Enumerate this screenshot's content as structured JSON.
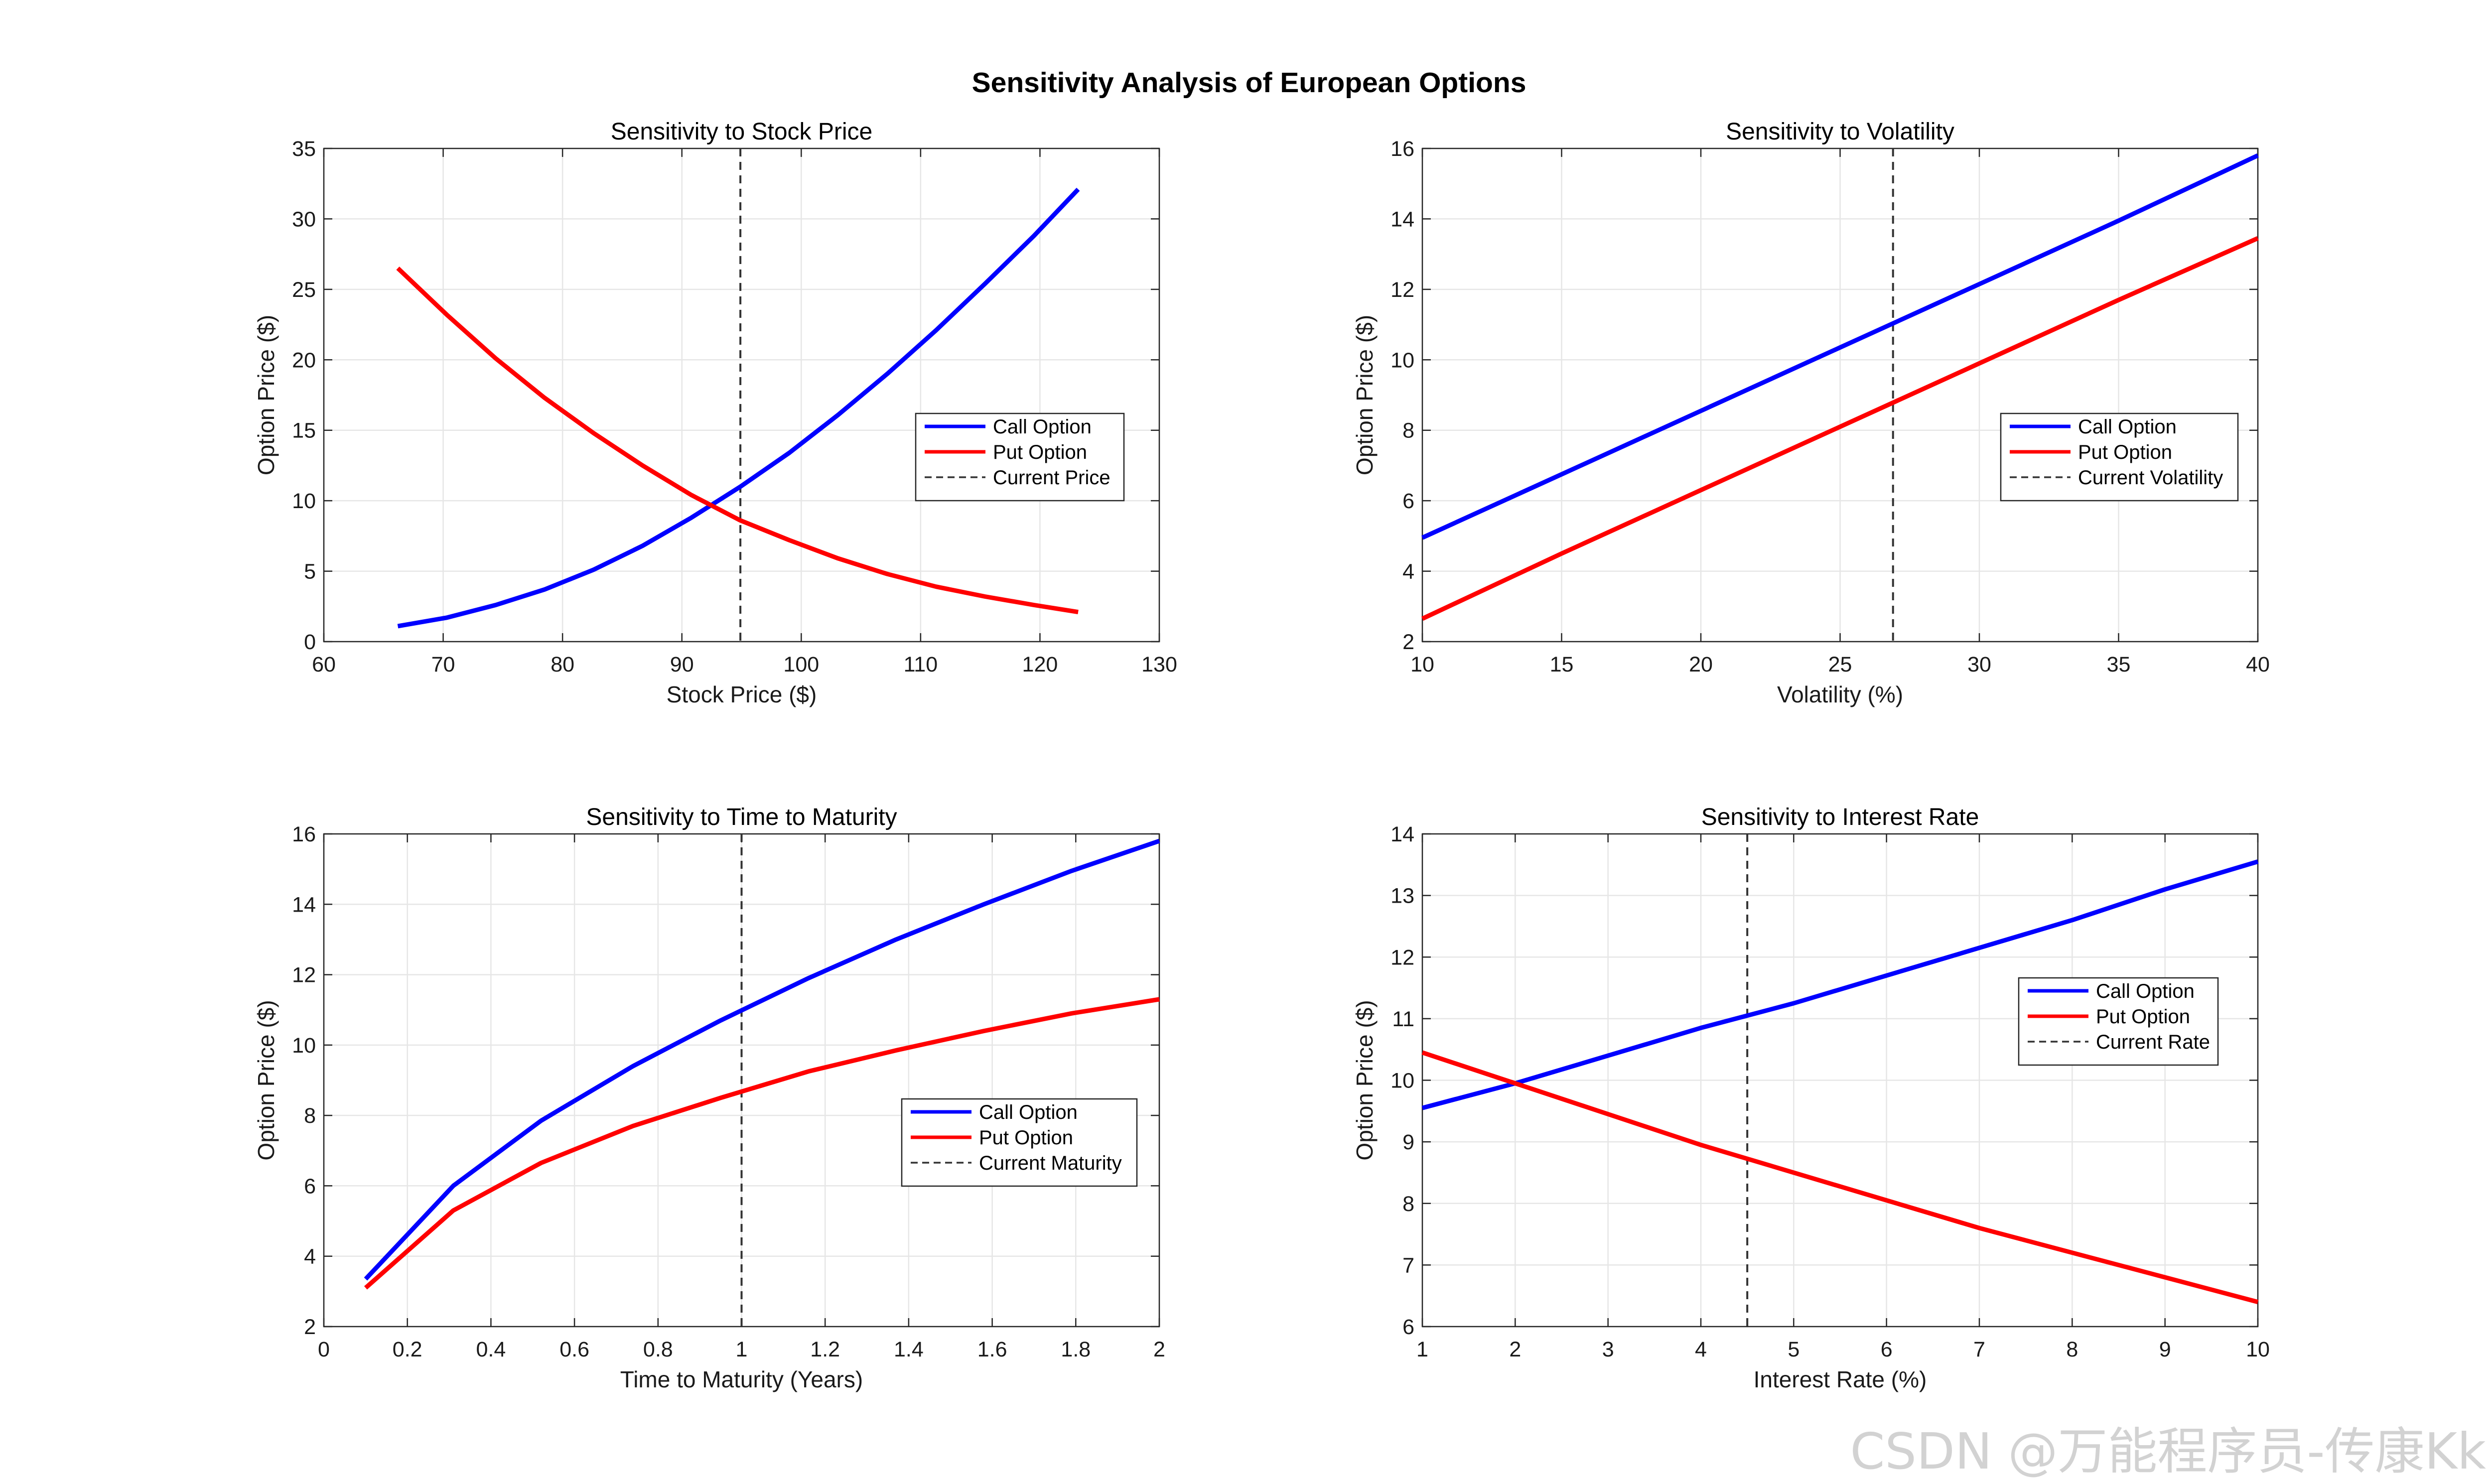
{
  "figure_title": "Sensitivity Analysis of European Options",
  "watermark": "CSDN @万能程序员-传康Kk",
  "colors": {
    "call": "#0000ff",
    "put": "#ff0000",
    "current": "#333333",
    "grid": "#e6e6e6",
    "axis": "#262626"
  },
  "chart_data": [
    {
      "type": "line",
      "title": "Sensitivity to Stock Price",
      "xlabel": "Stock Price ($)",
      "ylabel": "Option Price ($)",
      "xlim": [
        60,
        130
      ],
      "ylim": [
        0,
        35
      ],
      "xticks": [
        60,
        70,
        80,
        90,
        100,
        110,
        120,
        130
      ],
      "yticks": [
        0,
        5,
        10,
        15,
        20,
        25,
        30,
        35
      ],
      "xtick_labels": [
        "60",
        "70",
        "80",
        "90",
        "100",
        "110",
        "120",
        "130"
      ],
      "ytick_labels": [
        "0",
        "5",
        "10",
        "15",
        "20",
        "25",
        "30",
        "35"
      ],
      "legend_position": "right-middle",
      "series": [
        {
          "name": "Call Option",
          "color": "#0000ff",
          "x": [
            66.2,
            70.3,
            74.4,
            78.5,
            82.6,
            86.7,
            90.8,
            94.9,
            99.0,
            103.1,
            107.2,
            111.3,
            115.4,
            119.5,
            123.2
          ],
          "y": [
            1.1,
            1.7,
            2.6,
            3.7,
            5.1,
            6.8,
            8.8,
            11.0,
            13.4,
            16.1,
            19.0,
            22.1,
            25.4,
            28.8,
            32.1
          ]
        },
        {
          "name": "Put Option",
          "color": "#ff0000",
          "x": [
            66.2,
            70.3,
            74.4,
            78.5,
            82.6,
            86.7,
            90.8,
            94.9,
            99.0,
            103.1,
            107.2,
            111.3,
            115.4,
            119.5,
            123.2
          ],
          "y": [
            26.5,
            23.2,
            20.1,
            17.3,
            14.8,
            12.5,
            10.4,
            8.6,
            7.2,
            5.9,
            4.8,
            3.9,
            3.2,
            2.6,
            2.1
          ]
        }
      ],
      "reference_line": {
        "name": "Current Price",
        "x": 94.9
      }
    },
    {
      "type": "line",
      "title": "Sensitivity to Volatility",
      "xlabel": "Volatility (%)",
      "ylabel": "Option Price ($)",
      "xlim": [
        10,
        40
      ],
      "ylim": [
        2,
        16
      ],
      "xticks": [
        10,
        15,
        20,
        25,
        30,
        35,
        40
      ],
      "yticks": [
        2,
        4,
        6,
        8,
        10,
        12,
        14,
        16
      ],
      "xtick_labels": [
        "10",
        "15",
        "20",
        "25",
        "30",
        "35",
        "40"
      ],
      "ytick_labels": [
        "2",
        "4",
        "6",
        "8",
        "10",
        "12",
        "14",
        "16"
      ],
      "legend_position": "right-middle",
      "series": [
        {
          "name": "Call Option",
          "color": "#0000ff",
          "x": [
            10,
            15,
            20,
            25,
            30,
            35,
            40
          ],
          "y": [
            4.95,
            6.75,
            8.55,
            10.35,
            12.15,
            13.95,
            15.8
          ]
        },
        {
          "name": "Put Option",
          "color": "#ff0000",
          "x": [
            10,
            15,
            20,
            25,
            30,
            35,
            40
          ],
          "y": [
            2.65,
            4.5,
            6.3,
            8.1,
            9.9,
            11.7,
            13.45
          ]
        }
      ],
      "reference_line": {
        "name": "Current Volatility",
        "x": 26.9
      }
    },
    {
      "type": "line",
      "title": "Sensitivity to Time to Maturity",
      "xlabel": "Time to Maturity (Years)",
      "ylabel": "Option Price ($)",
      "xlim": [
        0,
        2
      ],
      "ylim": [
        2,
        16
      ],
      "xticks": [
        0,
        0.2,
        0.4,
        0.6,
        0.8,
        1,
        1.2,
        1.4,
        1.6,
        1.8,
        2
      ],
      "yticks": [
        2,
        4,
        6,
        8,
        10,
        12,
        14,
        16
      ],
      "xtick_labels": [
        "0",
        "0.2",
        "0.4",
        "0.6",
        "0.8",
        "1",
        "1.2",
        "1.4",
        "1.6",
        "1.8",
        "2"
      ],
      "ytick_labels": [
        "2",
        "4",
        "6",
        "8",
        "10",
        "12",
        "14",
        "16"
      ],
      "legend_position": "right-middle",
      "series": [
        {
          "name": "Call Option",
          "color": "#0000ff",
          "x": [
            0.1,
            0.31,
            0.52,
            0.74,
            0.95,
            1.16,
            1.37,
            1.58,
            1.79,
            2.0
          ],
          "y": [
            3.35,
            6.0,
            7.85,
            9.4,
            10.7,
            11.9,
            13.0,
            14.0,
            14.95,
            15.8
          ]
        },
        {
          "name": "Put Option",
          "color": "#ff0000",
          "x": [
            0.1,
            0.31,
            0.52,
            0.74,
            0.95,
            1.16,
            1.37,
            1.58,
            1.79,
            2.0
          ],
          "y": [
            3.1,
            5.3,
            6.65,
            7.7,
            8.5,
            9.25,
            9.85,
            10.4,
            10.9,
            11.3
          ]
        }
      ],
      "reference_line": {
        "name": "Current Maturity",
        "x": 1.0
      }
    },
    {
      "type": "line",
      "title": "Sensitivity to Interest Rate",
      "xlabel": "Interest Rate (%)",
      "ylabel": "Option Price ($)",
      "xlim": [
        1,
        10
      ],
      "ylim": [
        6,
        14
      ],
      "xticks": [
        1,
        2,
        3,
        4,
        5,
        6,
        7,
        8,
        9,
        10
      ],
      "yticks": [
        6,
        7,
        8,
        9,
        10,
        11,
        12,
        13,
        14
      ],
      "xtick_labels": [
        "1",
        "2",
        "3",
        "4",
        "5",
        "6",
        "7",
        "8",
        "9",
        "10"
      ],
      "ytick_labels": [
        "6",
        "7",
        "8",
        "9",
        "10",
        "11",
        "12",
        "13",
        "14"
      ],
      "legend_position": "right-upper-middle",
      "series": [
        {
          "name": "Call Option",
          "color": "#0000ff",
          "x": [
            1,
            2,
            3,
            4,
            5,
            6,
            7,
            8,
            9,
            10
          ],
          "y": [
            9.55,
            9.95,
            10.4,
            10.85,
            11.25,
            11.7,
            12.15,
            12.6,
            13.1,
            13.55
          ]
        },
        {
          "name": "Put Option",
          "color": "#ff0000",
          "x": [
            1,
            2,
            3,
            4,
            5,
            6,
            7,
            8,
            9,
            10
          ],
          "y": [
            10.45,
            9.95,
            9.45,
            8.95,
            8.5,
            8.05,
            7.6,
            7.2,
            6.8,
            6.4
          ]
        }
      ],
      "reference_line": {
        "name": "Current Rate",
        "x": 4.5
      }
    }
  ]
}
